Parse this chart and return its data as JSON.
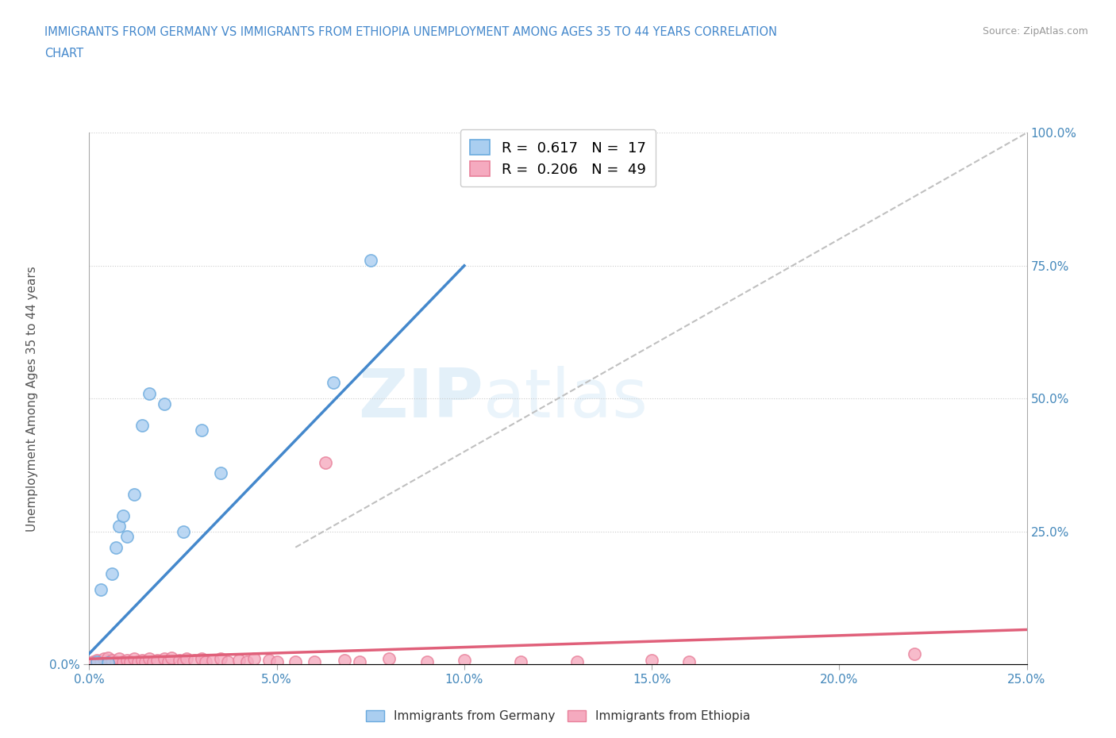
{
  "title_line1": "IMMIGRANTS FROM GERMANY VS IMMIGRANTS FROM ETHIOPIA UNEMPLOYMENT AMONG AGES 35 TO 44 YEARS CORRELATION",
  "title_line2": "CHART",
  "source": "Source: ZipAtlas.com",
  "ylabel": "Unemployment Among Ages 35 to 44 years",
  "xlim": [
    0.0,
    0.25
  ],
  "ylim": [
    0.0,
    1.0
  ],
  "xticks": [
    0.0,
    0.05,
    0.1,
    0.15,
    0.2,
    0.25
  ],
  "xticklabels": [
    "0.0%",
    "5.0%",
    "10.0%",
    "15.0%",
    "20.0%",
    "25.0%"
  ],
  "yticks_left": [
    0.0
  ],
  "yticklabels_left": [
    "0.0%"
  ],
  "yticks_right": [
    0.25,
    0.5,
    0.75,
    1.0
  ],
  "yticklabels_right": [
    "25.0%",
    "50.0%",
    "75.0%",
    "100.0%"
  ],
  "germany_R": 0.617,
  "germany_N": 17,
  "ethiopia_R": 0.206,
  "ethiopia_N": 49,
  "germany_color": "#aacef0",
  "ethiopia_color": "#f5aabf",
  "germany_edge": "#6aaade",
  "ethiopia_edge": "#e8809a",
  "germany_line_color": "#4488cc",
  "ethiopia_line_color": "#e0607a",
  "ref_line_color": "#c0c0c0",
  "watermark_zip": "ZIP",
  "watermark_atlas": "atlas",
  "germany_scatter_x": [
    0.002,
    0.003,
    0.005,
    0.006,
    0.007,
    0.008,
    0.009,
    0.01,
    0.012,
    0.014,
    0.016,
    0.02,
    0.025,
    0.03,
    0.035,
    0.065,
    0.075
  ],
  "germany_scatter_y": [
    0.005,
    0.14,
    0.003,
    0.17,
    0.22,
    0.26,
    0.28,
    0.24,
    0.32,
    0.45,
    0.51,
    0.49,
    0.25,
    0.44,
    0.36,
    0.53,
    0.76
  ],
  "ethiopia_scatter_x": [
    0.001,
    0.002,
    0.003,
    0.004,
    0.005,
    0.005,
    0.006,
    0.007,
    0.008,
    0.009,
    0.01,
    0.011,
    0.012,
    0.013,
    0.014,
    0.015,
    0.016,
    0.017,
    0.018,
    0.02,
    0.021,
    0.022,
    0.024,
    0.025,
    0.026,
    0.028,
    0.03,
    0.031,
    0.033,
    0.035,
    0.037,
    0.04,
    0.042,
    0.044,
    0.048,
    0.05,
    0.055,
    0.06,
    0.063,
    0.068,
    0.072,
    0.08,
    0.09,
    0.1,
    0.115,
    0.13,
    0.15,
    0.16,
    0.22
  ],
  "ethiopia_scatter_y": [
    0.005,
    0.008,
    0.005,
    0.01,
    0.005,
    0.012,
    0.008,
    0.005,
    0.01,
    0.005,
    0.008,
    0.005,
    0.01,
    0.005,
    0.008,
    0.005,
    0.01,
    0.005,
    0.008,
    0.01,
    0.005,
    0.012,
    0.008,
    0.005,
    0.01,
    0.008,
    0.01,
    0.005,
    0.008,
    0.01,
    0.005,
    0.008,
    0.005,
    0.01,
    0.008,
    0.005,
    0.005,
    0.005,
    0.38,
    0.008,
    0.005,
    0.01,
    0.005,
    0.008,
    0.005,
    0.005,
    0.008,
    0.005,
    0.02
  ],
  "germany_line_x": [
    0.0,
    0.1
  ],
  "germany_line_y": [
    0.02,
    0.75
  ],
  "ethiopia_line_x": [
    0.0,
    0.25
  ],
  "ethiopia_line_y": [
    0.01,
    0.065
  ],
  "ref_line_x": [
    0.055,
    0.25
  ],
  "ref_line_y": [
    0.22,
    1.0
  ]
}
